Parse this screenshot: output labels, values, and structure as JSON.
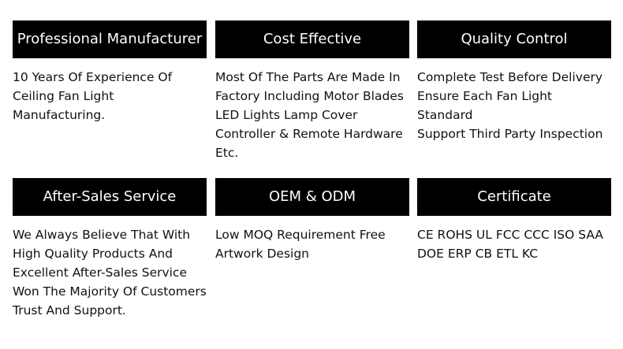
{
  "cards": [
    {
      "title": "Professional Manufacturer",
      "lines": [
        "10 Years Of Experience Of",
        "Ceiling Fan Light",
        "Manufacturing."
      ]
    },
    {
      "title": "Cost Effective",
      "lines": [
        "Most Of The Parts Are Made In",
        "Factory Including Motor Blades",
        "LED Lights Lamp Cover",
        "Controller & Remote Hardware",
        "Etc."
      ]
    },
    {
      "title": "Quality Control",
      "lines": [
        "Complete Test Before Delivery",
        "Ensure Each Fan Light Standard",
        "Support Third Party Inspection"
      ]
    },
    {
      "title": "After-Sales Service",
      "lines": [
        "We Always Believe That With",
        "High Quality Products And",
        "Excellent After-Sales Service",
        "Won The Majority Of Customers",
        "Trust And Support."
      ]
    },
    {
      "title": "OEM & ODM",
      "lines": [
        "Low MOQ Requirement Free",
        "Artwork Design"
      ]
    },
    {
      "title": "Certificate",
      "lines": [
        "CE ROHS UL FCC CCC ISO SAA",
        "DOE ERP CB ETL KC"
      ]
    }
  ]
}
